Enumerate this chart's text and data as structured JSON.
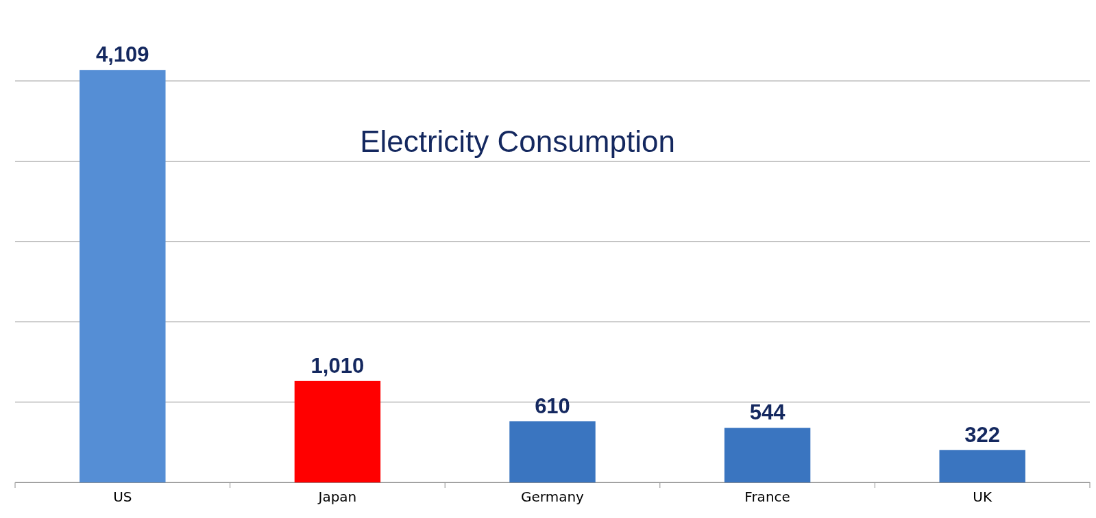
{
  "chart_data": {
    "type": "bar",
    "title": "Electricity Consumption",
    "categories": [
      "US",
      "Japan",
      "Germany",
      "France",
      "UK"
    ],
    "values": [
      4109,
      1010,
      610,
      544,
      322
    ],
    "colors": [
      "#558ed5",
      "#ff0000",
      "#3a75c0",
      "#3a75c0",
      "#3a75c0"
    ],
    "value_labels": [
      "4,109",
      "1,010",
      "610",
      "544",
      "322"
    ],
    "yticks": [
      {
        "value": 0,
        "label": null
      },
      {
        "value": 800,
        "label": null
      },
      {
        "value": 1600,
        "label": null
      },
      {
        "value": 2400,
        "label": null
      },
      {
        "value": 3200,
        "label": null
      },
      {
        "value": 4000,
        "label": null
      }
    ],
    "tick_labels": "x",
    "grid": "y"
  }
}
